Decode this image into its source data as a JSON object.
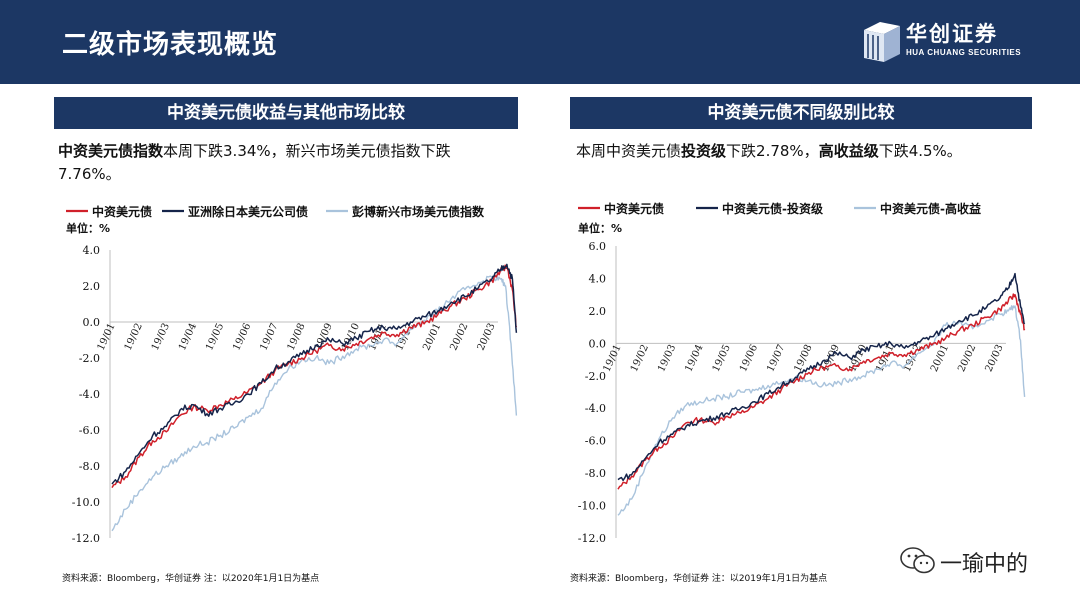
{
  "header": {
    "title": "二级市场表现概览"
  },
  "logo": {
    "name": "华创证券",
    "subtitle": "HUA CHUANG SECURITIES"
  },
  "left": {
    "panel_title": "中资美元债收益与其他市场比较",
    "desc_bold1": "中资美元债指数",
    "desc_text1": "本周下跌3.34%，新兴市场美元债指数下跌7.76%。",
    "source": "资料来源：Bloomberg，华创证券   注：以2020年1月1日为基点"
  },
  "right": {
    "panel_title": "中资美元债不同级别比较",
    "desc_text1": "本周中资美元债",
    "desc_bold1": "投资级",
    "desc_text2": "下跌2.78%，",
    "desc_bold2": "高收益级",
    "desc_text3": "下跌4.5%。",
    "source": "资料来源：Bloomberg，华创证券   注：以2019年1月1日为基点"
  },
  "watermark": {
    "text": "一瑜中的"
  },
  "chart_data": [
    {
      "type": "line",
      "unit_label": "单位：%",
      "ylim": [
        -12,
        4
      ],
      "yticks": [
        "4.0",
        "2.0",
        "0.0",
        "-2.0",
        "-4.0",
        "-6.0",
        "-8.0",
        "-10.0",
        "-12.0"
      ],
      "x_ticks": [
        "19/01",
        "19/02",
        "19/03",
        "19/04",
        "19/05",
        "19/06",
        "19/07",
        "19/08",
        "19/09",
        "19/10",
        "19/11",
        "19/12",
        "20/01",
        "20/02",
        "20/03"
      ],
      "grid": false,
      "legend_position": "top",
      "series": [
        {
          "name": "中资美元债",
          "color": "#d0202a",
          "points": [
            [
              0,
              -9.2
            ],
            [
              0.5,
              -8.6
            ],
            [
              1,
              -7.5
            ],
            [
              1.5,
              -6.6
            ],
            [
              2,
              -6.1
            ],
            [
              2.5,
              -5.2
            ],
            [
              3,
              -4.7
            ],
            [
              3.5,
              -4.9
            ],
            [
              4,
              -4.6
            ],
            [
              4.5,
              -4.3
            ],
            [
              5,
              -3.9
            ],
            [
              5.5,
              -3.4
            ],
            [
              6,
              -2.7
            ],
            [
              6.5,
              -2.3
            ],
            [
              7,
              -2.0
            ],
            [
              7.5,
              -1.6
            ],
            [
              8,
              -1.3
            ],
            [
              8.5,
              -1.5
            ],
            [
              9,
              -1.2
            ],
            [
              9.5,
              -0.9
            ],
            [
              10,
              -0.6
            ],
            [
              10.5,
              -0.7
            ],
            [
              11,
              -0.3
            ],
            [
              11.5,
              -0.1
            ],
            [
              12,
              0.4
            ],
            [
              12.5,
              0.9
            ],
            [
              13,
              1.3
            ],
            [
              13.5,
              1.8
            ],
            [
              14,
              2.3
            ],
            [
              14.3,
              2.8
            ],
            [
              14.55,
              3.1
            ],
            [
              14.75,
              1.8
            ],
            [
              14.9,
              -0.3
            ]
          ]
        },
        {
          "name": "亚洲除日本美元公司债",
          "color": "#15244a",
          "points": [
            [
              0,
              -9.0
            ],
            [
              0.5,
              -8.3
            ],
            [
              1,
              -7.3
            ],
            [
              1.5,
              -6.3
            ],
            [
              2,
              -5.8
            ],
            [
              2.5,
              -4.9
            ],
            [
              3,
              -4.6
            ],
            [
              3.5,
              -5.1
            ],
            [
              4,
              -4.8
            ],
            [
              4.5,
              -4.5
            ],
            [
              5,
              -4.0
            ],
            [
              5.5,
              -3.4
            ],
            [
              6,
              -2.6
            ],
            [
              6.5,
              -2.2
            ],
            [
              7,
              -1.8
            ],
            [
              7.5,
              -1.3
            ],
            [
              8,
              -1.0
            ],
            [
              8.5,
              -1.2
            ],
            [
              9,
              -0.9
            ],
            [
              9.5,
              -0.5
            ],
            [
              10,
              -0.3
            ],
            [
              10.5,
              -0.4
            ],
            [
              11,
              0.0
            ],
            [
              11.5,
              0.3
            ],
            [
              12,
              0.6
            ],
            [
              12.5,
              1.1
            ],
            [
              13,
              1.4
            ],
            [
              13.5,
              1.9
            ],
            [
              14,
              2.4
            ],
            [
              14.3,
              2.9
            ],
            [
              14.55,
              3.2
            ],
            [
              14.75,
              2.4
            ],
            [
              14.9,
              -0.6
            ]
          ]
        },
        {
          "name": "彭博新兴市场美元债指数",
          "color": "#a9c3dc",
          "points": [
            [
              0,
              -11.6
            ],
            [
              0.5,
              -10.4
            ],
            [
              1,
              -9.4
            ],
            [
              1.5,
              -8.6
            ],
            [
              2,
              -8.0
            ],
            [
              2.5,
              -7.5
            ],
            [
              3,
              -6.9
            ],
            [
              3.5,
              -6.7
            ],
            [
              4,
              -6.3
            ],
            [
              4.5,
              -5.9
            ],
            [
              5,
              -5.3
            ],
            [
              5.5,
              -4.8
            ],
            [
              6,
              -3.4
            ],
            [
              6.5,
              -2.6
            ],
            [
              7,
              -2.1
            ],
            [
              7.5,
              -2.0
            ],
            [
              8,
              -2.3
            ],
            [
              8.5,
              -1.9
            ],
            [
              9,
              -1.5
            ],
            [
              9.5,
              -1.3
            ],
            [
              10,
              -1.0
            ],
            [
              10.5,
              -1.2
            ],
            [
              11,
              -0.4
            ],
            [
              11.5,
              0.1
            ],
            [
              12,
              0.6
            ],
            [
              12.5,
              1.3
            ],
            [
              13,
              1.8
            ],
            [
              13.5,
              2.2
            ],
            [
              14,
              2.5
            ],
            [
              14.3,
              2.4
            ],
            [
              14.5,
              2.0
            ],
            [
              14.7,
              -1.2
            ],
            [
              14.9,
              -5.2
            ]
          ]
        }
      ]
    },
    {
      "type": "line",
      "unit_label": "单位：%",
      "ylim": [
        -12,
        6
      ],
      "yticks": [
        "6.0",
        "4.0",
        "2.0",
        "0.0",
        "-2.0",
        "-4.0",
        "-6.0",
        "-8.0",
        "-10.0",
        "-12.0"
      ],
      "x_ticks": [
        "19/01",
        "19/02",
        "19/03",
        "19/04",
        "19/05",
        "19/06",
        "19/07",
        "19/08",
        "19/09",
        "19/10",
        "19/11",
        "19/12",
        "20/01",
        "20/02",
        "20/03"
      ],
      "grid": false,
      "legend_position": "top",
      "series": [
        {
          "name": "中资美元债",
          "color": "#d0202a",
          "points": [
            [
              0,
              -9.0
            ],
            [
              0.5,
              -8.2
            ],
            [
              1,
              -7.2
            ],
            [
              1.5,
              -6.4
            ],
            [
              2,
              -5.8
            ],
            [
              2.5,
              -4.9
            ],
            [
              3,
              -4.7
            ],
            [
              3.5,
              -4.9
            ],
            [
              4,
              -4.5
            ],
            [
              4.5,
              -4.3
            ],
            [
              5,
              -3.9
            ],
            [
              5.5,
              -3.4
            ],
            [
              6,
              -2.8
            ],
            [
              6.5,
              -2.3
            ],
            [
              7,
              -1.8
            ],
            [
              7.5,
              -1.5
            ],
            [
              8,
              -1.4
            ],
            [
              8.5,
              -1.6
            ],
            [
              9,
              -1.1
            ],
            [
              9.5,
              -0.9
            ],
            [
              10,
              -0.6
            ],
            [
              10.5,
              -0.7
            ],
            [
              11,
              -0.4
            ],
            [
              11.5,
              -0.1
            ],
            [
              12,
              0.3
            ],
            [
              12.5,
              0.8
            ],
            [
              13,
              1.1
            ],
            [
              13.5,
              1.6
            ],
            [
              14,
              2.1
            ],
            [
              14.3,
              2.6
            ],
            [
              14.55,
              3.0
            ],
            [
              14.75,
              1.8
            ],
            [
              14.9,
              0.9
            ]
          ]
        },
        {
          "name": "中资美元债-投资级",
          "color": "#15244a",
          "points": [
            [
              0,
              -8.4
            ],
            [
              0.5,
              -8.1
            ],
            [
              1,
              -7.1
            ],
            [
              1.5,
              -6.1
            ],
            [
              2,
              -5.6
            ],
            [
              2.5,
              -5.1
            ],
            [
              3,
              -4.8
            ],
            [
              3.5,
              -4.6
            ],
            [
              4,
              -4.3
            ],
            [
              4.5,
              -4.0
            ],
            [
              5,
              -3.6
            ],
            [
              5.5,
              -3.1
            ],
            [
              6,
              -2.6
            ],
            [
              6.5,
              -2.1
            ],
            [
              7,
              -1.6
            ],
            [
              7.5,
              -1.1
            ],
            [
              8,
              -0.6
            ],
            [
              8.5,
              -0.9
            ],
            [
              9,
              -0.4
            ],
            [
              9.5,
              -0.2
            ],
            [
              10,
              0.0
            ],
            [
              10.5,
              -0.3
            ],
            [
              11,
              0.1
            ],
            [
              11.5,
              0.4
            ],
            [
              12,
              0.9
            ],
            [
              12.5,
              1.4
            ],
            [
              13,
              1.7
            ],
            [
              13.5,
              2.2
            ],
            [
              14,
              2.8
            ],
            [
              14.3,
              3.4
            ],
            [
              14.55,
              4.3
            ],
            [
              14.75,
              2.3
            ],
            [
              14.9,
              1.2
            ]
          ]
        },
        {
          "name": "中资美元债-高收益",
          "color": "#a9c3dc",
          "points": [
            [
              0,
              -10.6
            ],
            [
              0.5,
              -9.6
            ],
            [
              1,
              -7.6
            ],
            [
              1.5,
              -5.9
            ],
            [
              2,
              -4.6
            ],
            [
              2.5,
              -3.8
            ],
            [
              3,
              -3.6
            ],
            [
              3.5,
              -3.4
            ],
            [
              4,
              -3.3
            ],
            [
              4.5,
              -3.0
            ],
            [
              5,
              -2.9
            ],
            [
              5.5,
              -2.6
            ],
            [
              6,
              -2.4
            ],
            [
              6.5,
              -2.1
            ],
            [
              7,
              -2.3
            ],
            [
              7.5,
              -2.6
            ],
            [
              8,
              -2.5
            ],
            [
              8.5,
              -2.2
            ],
            [
              9,
              -2.0
            ],
            [
              9.5,
              -1.6
            ],
            [
              10,
              -1.2
            ],
            [
              10.5,
              -1.4
            ],
            [
              11,
              -0.6
            ],
            [
              11.5,
              -0.1
            ],
            [
              12,
              1.1
            ],
            [
              12.5,
              1.3
            ],
            [
              13,
              0.9
            ],
            [
              13.5,
              1.4
            ],
            [
              14,
              1.8
            ],
            [
              14.3,
              2.0
            ],
            [
              14.55,
              2.3
            ],
            [
              14.75,
              0.2
            ],
            [
              14.9,
              -3.3
            ]
          ]
        }
      ]
    }
  ]
}
